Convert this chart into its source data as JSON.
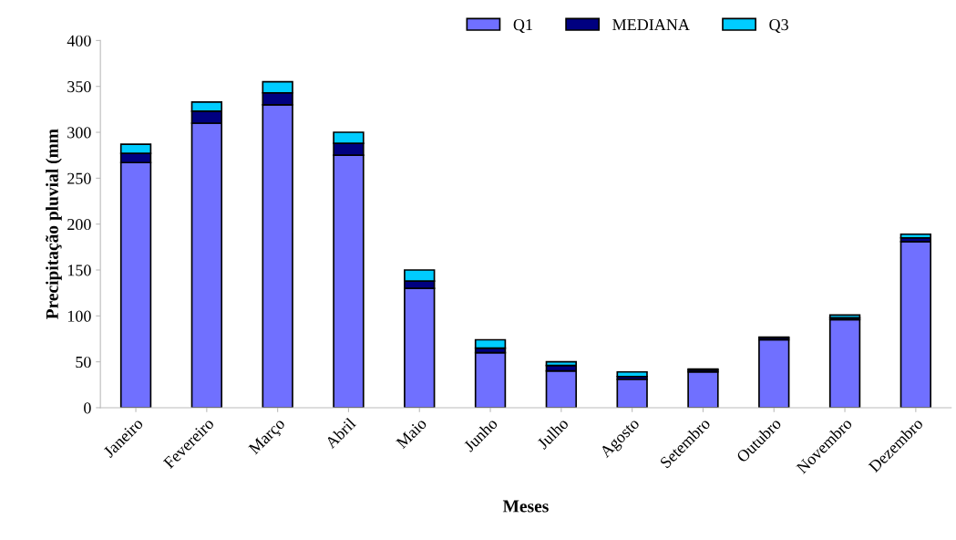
{
  "chart_data": {
    "type": "bar",
    "stacked": true,
    "categories": [
      "Janeiro",
      "Fevereiro",
      "Março",
      "Abril",
      "Maio",
      "Junho",
      "Julho",
      "Agosto",
      "Setembro",
      "Outubro",
      "Novembro",
      "Dezembro"
    ],
    "series": [
      {
        "name": "Q1",
        "color": "#7070ff",
        "values": [
          267,
          310,
          330,
          275,
          130,
          60,
          40,
          31,
          39,
          74,
          96,
          181
        ]
      },
      {
        "name": "MEDIANA",
        "color": "#000080",
        "values": [
          10,
          13,
          13,
          13,
          8,
          5,
          6,
          3,
          2,
          2,
          2,
          4
        ]
      },
      {
        "name": "Q3",
        "color": "#00ccff",
        "values": [
          10,
          10,
          12,
          12,
          12,
          9,
          4,
          5,
          1,
          1,
          3,
          4
        ]
      }
    ],
    "xlabel": "Meses",
    "ylabel": "Precipitação pluvial (mm",
    "ylim": [
      0,
      400
    ],
    "yticks": [
      0,
      50,
      100,
      150,
      200,
      250,
      300,
      350,
      400
    ],
    "grid": false,
    "legend": "top"
  }
}
